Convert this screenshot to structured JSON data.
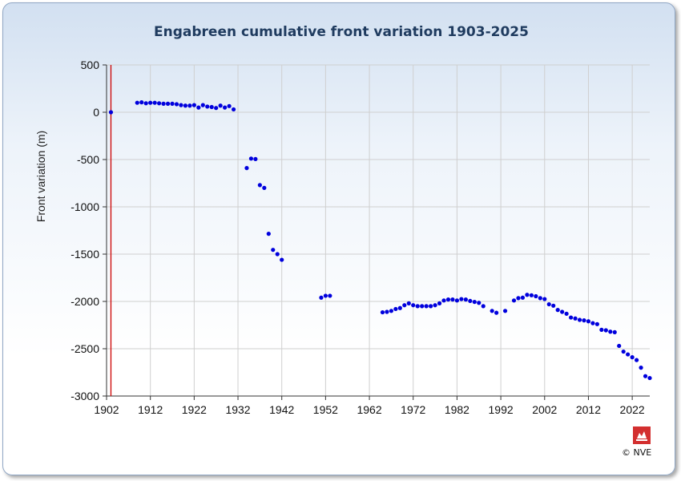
{
  "chart_data": {
    "type": "scatter",
    "title": "Engabreen cumulative front variation 1903-2025",
    "ylabel": "Front variation (m)",
    "xlabel": "",
    "xlim": [
      1902,
      2026
    ],
    "ylim": [
      -3000,
      500
    ],
    "xticks": [
      1902,
      1912,
      1922,
      1932,
      1942,
      1952,
      1962,
      1972,
      1982,
      1992,
      2002,
      2012,
      2022
    ],
    "yticks": [
      500,
      0,
      -500,
      -1000,
      -1500,
      -2000,
      -2500,
      -3000
    ],
    "grid": true,
    "reference_line_x": 1903,
    "colors": {
      "points": "#0000dd",
      "reference_line": "#cc0000",
      "grid": "#cfcfcf"
    },
    "series": [
      {
        "points": [
          [
            1903,
            0
          ],
          [
            1909,
            100
          ],
          [
            1910,
            105
          ],
          [
            1911,
            95
          ],
          [
            1912,
            100
          ],
          [
            1913,
            100
          ],
          [
            1914,
            95
          ],
          [
            1915,
            90
          ],
          [
            1916,
            90
          ],
          [
            1917,
            90
          ],
          [
            1918,
            85
          ],
          [
            1919,
            75
          ],
          [
            1920,
            70
          ],
          [
            1921,
            70
          ],
          [
            1922,
            75
          ],
          [
            1923,
            50
          ],
          [
            1924,
            75
          ],
          [
            1925,
            60
          ],
          [
            1926,
            55
          ],
          [
            1927,
            45
          ],
          [
            1928,
            70
          ],
          [
            1929,
            50
          ],
          [
            1930,
            65
          ],
          [
            1931,
            30
          ],
          [
            1934,
            -590
          ],
          [
            1935,
            -490
          ],
          [
            1936,
            -495
          ],
          [
            1937,
            -770
          ],
          [
            1938,
            -800
          ],
          [
            1939,
            -1285
          ],
          [
            1940,
            -1455
          ],
          [
            1941,
            -1500
          ],
          [
            1942,
            -1560
          ],
          [
            1951,
            -1960
          ],
          [
            1952,
            -1940
          ],
          [
            1953,
            -1940
          ],
          [
            1965,
            -2115
          ],
          [
            1966,
            -2110
          ],
          [
            1967,
            -2100
          ],
          [
            1968,
            -2080
          ],
          [
            1969,
            -2070
          ],
          [
            1970,
            -2040
          ],
          [
            1971,
            -2020
          ],
          [
            1972,
            -2040
          ],
          [
            1973,
            -2050
          ],
          [
            1974,
            -2050
          ],
          [
            1975,
            -2050
          ],
          [
            1976,
            -2050
          ],
          [
            1977,
            -2040
          ],
          [
            1978,
            -2020
          ],
          [
            1979,
            -1990
          ],
          [
            1980,
            -1980
          ],
          [
            1981,
            -1980
          ],
          [
            1982,
            -1990
          ],
          [
            1983,
            -1975
          ],
          [
            1984,
            -1980
          ],
          [
            1985,
            -1995
          ],
          [
            1986,
            -2005
          ],
          [
            1987,
            -2015
          ],
          [
            1988,
            -2050
          ],
          [
            1990,
            -2100
          ],
          [
            1991,
            -2120
          ],
          [
            1993,
            -2100
          ],
          [
            1995,
            -1990
          ],
          [
            1996,
            -1965
          ],
          [
            1997,
            -1960
          ],
          [
            1998,
            -1930
          ],
          [
            1999,
            -1935
          ],
          [
            2000,
            -1945
          ],
          [
            2001,
            -1965
          ],
          [
            2002,
            -1975
          ],
          [
            2003,
            -2030
          ],
          [
            2004,
            -2045
          ],
          [
            2005,
            -2090
          ],
          [
            2006,
            -2110
          ],
          [
            2007,
            -2130
          ],
          [
            2008,
            -2170
          ],
          [
            2009,
            -2180
          ],
          [
            2010,
            -2195
          ],
          [
            2011,
            -2200
          ],
          [
            2012,
            -2210
          ],
          [
            2013,
            -2230
          ],
          [
            2014,
            -2240
          ],
          [
            2015,
            -2300
          ],
          [
            2016,
            -2305
          ],
          [
            2017,
            -2320
          ],
          [
            2018,
            -2325
          ],
          [
            2019,
            -2470
          ],
          [
            2020,
            -2530
          ],
          [
            2021,
            -2560
          ],
          [
            2022,
            -2590
          ],
          [
            2023,
            -2620
          ],
          [
            2024,
            -2700
          ],
          [
            2025,
            -2790
          ],
          [
            2026,
            -2810
          ]
        ]
      }
    ]
  },
  "footer": {
    "copyright": "© NVE",
    "logo_name": "nve-logo-icon",
    "logo_color": "#d32f2f"
  }
}
